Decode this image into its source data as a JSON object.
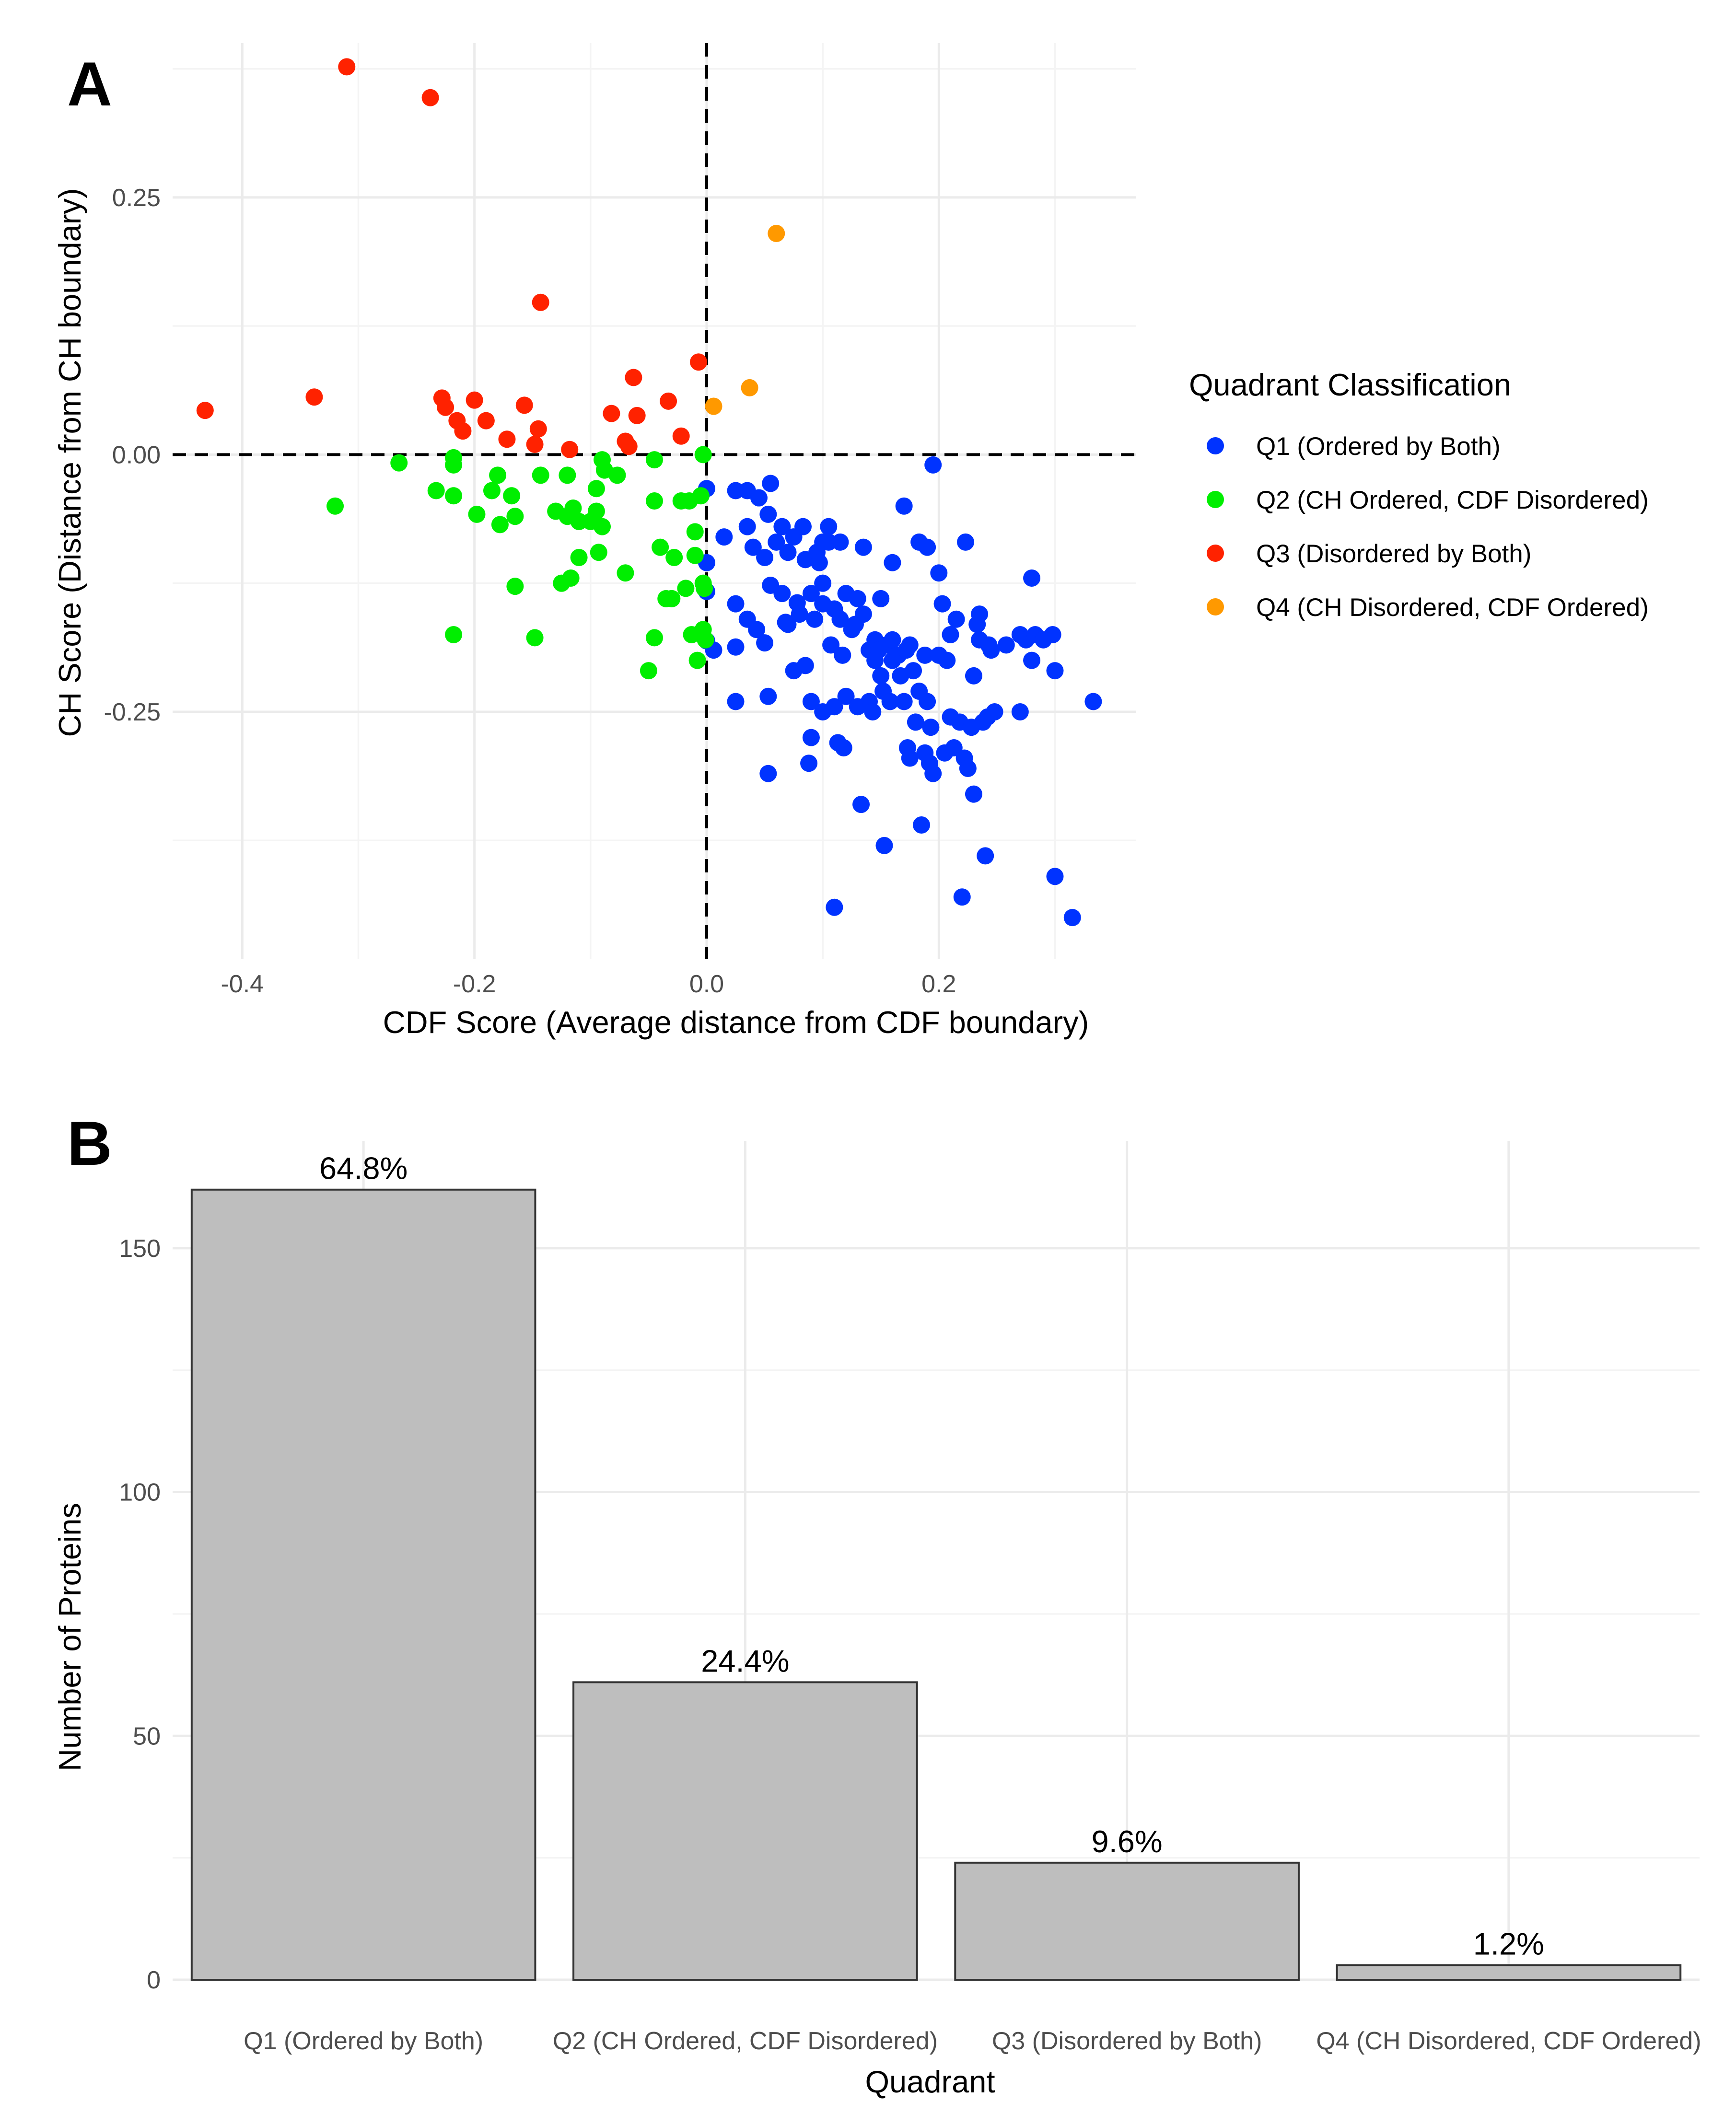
{
  "panels": {
    "a_letter": "A",
    "b_letter": "B"
  },
  "chart_data": [
    {
      "type": "scatter",
      "panel": "A",
      "title": "",
      "xlabel": "CDF Score (Average distance from CDF boundary)",
      "ylabel": "CH Score (Distance from CH boundary)",
      "xlim": [
        -0.46,
        0.37
      ],
      "ylim": [
        -0.49,
        0.4
      ],
      "x_ticks": [
        -0.4,
        -0.2,
        0.0,
        0.2
      ],
      "x_tick_labels": [
        "-0.4",
        "-0.2",
        "0.0",
        "0.2"
      ],
      "y_ticks": [
        -0.25,
        0.0,
        0.25
      ],
      "y_tick_labels": [
        "-0.25",
        "0.00",
        "0.25"
      ],
      "reference_lines": {
        "x": 0,
        "y": 0,
        "style": "dashed"
      },
      "legend": {
        "title": "Quadrant Classification",
        "placement": "right"
      },
      "series": [
        {
          "name": "Q1 (Ordered by Both)",
          "color": "#0033ff",
          "points": [
            [
              0.0,
              -0.033
            ],
            [
              0.0,
              -0.105
            ],
            [
              0.0,
              -0.133
            ],
            [
              0.0,
              -0.181
            ],
            [
              0.006,
              -0.19
            ],
            [
              0.015,
              -0.08
            ],
            [
              0.025,
              -0.145
            ],
            [
              0.025,
              -0.187
            ],
            [
              0.025,
              -0.24
            ],
            [
              0.025,
              -0.035
            ],
            [
              0.035,
              -0.035
            ],
            [
              0.035,
              -0.07
            ],
            [
              0.035,
              -0.16
            ],
            [
              0.04,
              -0.09
            ],
            [
              0.043,
              -0.17
            ],
            [
              0.045,
              -0.042
            ],
            [
              0.05,
              -0.1
            ],
            [
              0.05,
              -0.183
            ],
            [
              0.053,
              -0.235
            ],
            [
              0.053,
              -0.058
            ],
            [
              0.053,
              -0.31
            ],
            [
              0.055,
              -0.028
            ],
            [
              0.055,
              -0.127
            ],
            [
              0.06,
              -0.085
            ],
            [
              0.065,
              -0.07
            ],
            [
              0.065,
              -0.135
            ],
            [
              0.068,
              -0.163
            ],
            [
              0.07,
              -0.165
            ],
            [
              0.07,
              -0.095
            ],
            [
              0.075,
              -0.08
            ],
            [
              0.075,
              -0.21
            ],
            [
              0.078,
              -0.144
            ],
            [
              0.08,
              -0.155
            ],
            [
              0.083,
              -0.07
            ],
            [
              0.085,
              -0.102
            ],
            [
              0.085,
              -0.205
            ],
            [
              0.088,
              -0.3
            ],
            [
              0.09,
              -0.135
            ],
            [
              0.09,
              -0.24
            ],
            [
              0.09,
              -0.275
            ],
            [
              0.093,
              -0.16
            ],
            [
              0.095,
              -0.095
            ],
            [
              0.097,
              -0.105
            ],
            [
              0.1,
              -0.085
            ],
            [
              0.1,
              -0.125
            ],
            [
              0.1,
              -0.145
            ],
            [
              0.1,
              -0.25
            ],
            [
              0.105,
              -0.07
            ],
            [
              0.105,
              -0.085
            ],
            [
              0.107,
              -0.185
            ],
            [
              0.11,
              -0.15
            ],
            [
              0.11,
              -0.245
            ],
            [
              0.11,
              -0.44
            ],
            [
              0.113,
              -0.28
            ],
            [
              0.115,
              -0.085
            ],
            [
              0.115,
              -0.16
            ],
            [
              0.117,
              -0.195
            ],
            [
              0.118,
              -0.285
            ],
            [
              0.12,
              -0.135
            ],
            [
              0.12,
              -0.235
            ],
            [
              0.125,
              -0.17
            ],
            [
              0.128,
              -0.165
            ],
            [
              0.13,
              -0.14
            ],
            [
              0.13,
              -0.245
            ],
            [
              0.133,
              -0.34
            ],
            [
              0.135,
              -0.09
            ],
            [
              0.135,
              -0.155
            ],
            [
              0.14,
              -0.19
            ],
            [
              0.14,
              -0.24
            ],
            [
              0.143,
              -0.25
            ],
            [
              0.145,
              -0.2
            ],
            [
              0.145,
              -0.18
            ],
            [
              0.148,
              -0.19
            ],
            [
              0.15,
              -0.14
            ],
            [
              0.15,
              -0.215
            ],
            [
              0.152,
              -0.23
            ],
            [
              0.153,
              -0.38
            ],
            [
              0.155,
              -0.185
            ],
            [
              0.158,
              -0.24
            ],
            [
              0.16,
              -0.105
            ],
            [
              0.16,
              -0.2
            ],
            [
              0.16,
              -0.18
            ],
            [
              0.165,
              -0.195
            ],
            [
              0.167,
              -0.215
            ],
            [
              0.17,
              -0.05
            ],
            [
              0.17,
              -0.24
            ],
            [
              0.172,
              -0.19
            ],
            [
              0.173,
              -0.285
            ],
            [
              0.175,
              -0.295
            ],
            [
              0.175,
              -0.185
            ],
            [
              0.178,
              -0.21
            ],
            [
              0.18,
              -0.26
            ],
            [
              0.183,
              -0.085
            ],
            [
              0.183,
              -0.23
            ],
            [
              0.185,
              -0.36
            ],
            [
              0.188,
              -0.195
            ],
            [
              0.188,
              -0.29
            ],
            [
              0.19,
              -0.09
            ],
            [
              0.19,
              -0.24
            ],
            [
              0.192,
              -0.3
            ],
            [
              0.193,
              -0.265
            ],
            [
              0.195,
              -0.01
            ],
            [
              0.195,
              -0.31
            ],
            [
              0.2,
              -0.115
            ],
            [
              0.2,
              -0.195
            ],
            [
              0.203,
              -0.145
            ],
            [
              0.205,
              -0.29
            ],
            [
              0.207,
              -0.2
            ],
            [
              0.21,
              -0.175
            ],
            [
              0.21,
              -0.255
            ],
            [
              0.213,
              -0.285
            ],
            [
              0.215,
              -0.16
            ],
            [
              0.218,
              -0.26
            ],
            [
              0.22,
              -0.43
            ],
            [
              0.222,
              -0.295
            ],
            [
              0.223,
              -0.085
            ],
            [
              0.225,
              -0.305
            ],
            [
              0.228,
              -0.265
            ],
            [
              0.23,
              -0.215
            ],
            [
              0.23,
              -0.33
            ],
            [
              0.233,
              -0.165
            ],
            [
              0.235,
              -0.155
            ],
            [
              0.235,
              -0.18
            ],
            [
              0.238,
              -0.26
            ],
            [
              0.24,
              -0.39
            ],
            [
              0.242,
              -0.255
            ],
            [
              0.243,
              -0.185
            ],
            [
              0.245,
              -0.19
            ],
            [
              0.248,
              -0.25
            ],
            [
              0.258,
              -0.185
            ],
            [
              0.27,
              -0.25
            ],
            [
              0.27,
              -0.175
            ],
            [
              0.275,
              -0.18
            ],
            [
              0.28,
              -0.12
            ],
            [
              0.28,
              -0.2
            ],
            [
              0.283,
              -0.175
            ],
            [
              0.29,
              -0.18
            ],
            [
              0.298,
              -0.175
            ],
            [
              0.3,
              -0.21
            ],
            [
              0.3,
              -0.41
            ],
            [
              0.315,
              -0.45
            ],
            [
              0.333,
              -0.24
            ]
          ]
        },
        {
          "name": "Q2 (CH Ordered, CDF Disordered)",
          "color": "#00ee00",
          "points": [
            [
              -0.32,
              -0.05
            ],
            [
              -0.265,
              -0.008
            ],
            [
              -0.233,
              -0.035
            ],
            [
              -0.218,
              -0.003
            ],
            [
              -0.218,
              -0.01
            ],
            [
              -0.218,
              -0.04
            ],
            [
              -0.218,
              -0.175
            ],
            [
              -0.198,
              -0.058
            ],
            [
              -0.185,
              -0.035
            ],
            [
              -0.18,
              -0.02
            ],
            [
              -0.178,
              -0.068
            ],
            [
              -0.168,
              -0.04
            ],
            [
              -0.165,
              -0.06
            ],
            [
              -0.165,
              -0.128
            ],
            [
              -0.148,
              -0.178
            ],
            [
              -0.143,
              -0.02
            ],
            [
              -0.13,
              -0.055
            ],
            [
              -0.125,
              -0.125
            ],
            [
              -0.12,
              -0.06
            ],
            [
              -0.12,
              -0.02
            ],
            [
              -0.117,
              -0.12
            ],
            [
              -0.115,
              -0.052
            ],
            [
              -0.11,
              -0.065
            ],
            [
              -0.11,
              -0.1
            ],
            [
              -0.1,
              -0.065
            ],
            [
              -0.095,
              -0.055
            ],
            [
              -0.095,
              -0.033
            ],
            [
              -0.093,
              -0.095
            ],
            [
              -0.09,
              -0.005
            ],
            [
              -0.09,
              -0.07
            ],
            [
              -0.088,
              -0.015
            ],
            [
              -0.077,
              -0.02
            ],
            [
              -0.07,
              -0.115
            ],
            [
              -0.05,
              -0.21
            ],
            [
              -0.045,
              -0.045
            ],
            [
              -0.045,
              -0.005
            ],
            [
              -0.045,
              -0.178
            ],
            [
              -0.04,
              -0.09
            ],
            [
              -0.035,
              -0.14
            ],
            [
              -0.03,
              -0.14
            ],
            [
              -0.028,
              -0.1
            ],
            [
              -0.022,
              -0.045
            ],
            [
              -0.018,
              -0.13
            ],
            [
              -0.015,
              -0.045
            ],
            [
              -0.013,
              -0.175
            ],
            [
              -0.01,
              -0.075
            ],
            [
              -0.01,
              -0.098
            ],
            [
              -0.008,
              -0.2
            ],
            [
              -0.005,
              -0.04
            ],
            [
              -0.003,
              0.0
            ],
            [
              -0.003,
              -0.125
            ],
            [
              -0.003,
              -0.17
            ],
            [
              -0.002,
              -0.13
            ],
            [
              -0.001,
              -0.18
            ]
          ]
        },
        {
          "name": "Q3 (Disordered by Both)",
          "color": "#ff2200",
          "points": [
            [
              -0.432,
              0.043
            ],
            [
              -0.338,
              0.056
            ],
            [
              -0.31,
              0.377
            ],
            [
              -0.238,
              0.347
            ],
            [
              -0.228,
              0.055
            ],
            [
              -0.225,
              0.046
            ],
            [
              -0.215,
              0.033
            ],
            [
              -0.21,
              0.023
            ],
            [
              -0.2,
              0.053
            ],
            [
              -0.19,
              0.033
            ],
            [
              -0.172,
              0.015
            ],
            [
              -0.157,
              0.048
            ],
            [
              -0.148,
              0.01
            ],
            [
              -0.145,
              0.025
            ],
            [
              -0.143,
              0.148
            ],
            [
              -0.118,
              0.005
            ],
            [
              -0.082,
              0.04
            ],
            [
              -0.07,
              0.013
            ],
            [
              -0.067,
              0.008
            ],
            [
              -0.063,
              0.075
            ],
            [
              -0.06,
              0.038
            ],
            [
              -0.033,
              0.052
            ],
            [
              -0.022,
              0.018
            ],
            [
              -0.007,
              0.09
            ]
          ]
        },
        {
          "name": "Q4 (CH Disordered, CDF Ordered)",
          "color": "#ff9900",
          "points": [
            [
              0.006,
              0.047
            ],
            [
              0.037,
              0.065
            ],
            [
              0.06,
              0.215
            ]
          ]
        }
      ]
    },
    {
      "type": "bar",
      "panel": "B",
      "title": "",
      "xlabel": "Quadrant",
      "ylabel": "Number of Proteins",
      "ylim": [
        0,
        172
      ],
      "y_ticks": [
        0,
        50,
        100,
        150
      ],
      "y_tick_labels": [
        "0",
        "50",
        "100",
        "150"
      ],
      "bar_color": "#bebebe",
      "categories": [
        "Q1 (Ordered by Both)",
        "Q2 (CH Ordered, CDF Disordered)",
        "Q3 (Disordered by Both)",
        "Q4 (CH Disordered, CDF Ordered)"
      ],
      "values": [
        162,
        61,
        24,
        3
      ],
      "data_labels": [
        "64.8%",
        "24.4%",
        "9.6%",
        "1.2%"
      ]
    }
  ]
}
